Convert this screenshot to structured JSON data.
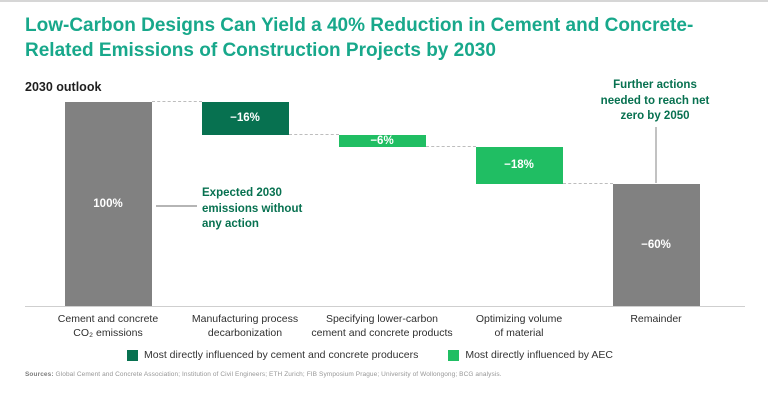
{
  "title": "Low-Carbon Designs Can Yield a 40% Reduction in Cement and Concrete-Related Emissions of Construction Projects by 2030",
  "subtitle": "2030 outlook",
  "annotations": {
    "expected": "Expected 2030\nemissions without\nany action",
    "further": "Further actions\nneeded to reach net\nzero by 2050"
  },
  "legend": [
    {
      "label": "Most directly influenced by cement and concrete producers",
      "color": "#077150"
    },
    {
      "label": "Most directly influenced by AEC",
      "color": "#20be63"
    }
  ],
  "sources_label": "Sources:",
  "sources_text": " Global Cement and Concrete Association; Institution of Civil Engineers; ETH Zurich; FIB Symposium Prague; University of Wollongong; BCG analysis.",
  "colors": {
    "title_teal": "#18a88b",
    "producer_dark_green": "#077150",
    "aec_light_green": "#20be63",
    "neutral_gray": "#818181",
    "annotation_green": "#077150"
  },
  "chart_data": {
    "type": "bar",
    "subtype": "waterfall",
    "title": "2030 outlook",
    "unit": "%",
    "ylim": [
      0,
      100
    ],
    "grid": false,
    "legend_position": "bottom",
    "categories": [
      "Cement and concrete CO₂ emissions",
      "Manufacturing process decarbonization",
      "Specifying lower-carbon cement and concrete products",
      "Optimizing volume of material",
      "Remainder"
    ],
    "values": [
      100,
      -16,
      -6,
      -18,
      -60
    ],
    "bars": [
      {
        "category": "Cement and concrete\nCO₂ emissions",
        "label": "100%",
        "value": 100,
        "start": 0,
        "end": 100,
        "group": "baseline",
        "color": "#818181"
      },
      {
        "category": "Manufacturing process\ndecarbonization",
        "label": "−16%",
        "value": -16,
        "start": 84,
        "end": 100,
        "group": "producers",
        "color": "#077150"
      },
      {
        "category": "Specifying lower-carbon\ncement and concrete products",
        "label": "−6%",
        "value": -6,
        "start": 78,
        "end": 84,
        "group": "aec",
        "color": "#20be63"
      },
      {
        "category": "Optimizing volume\nof material",
        "label": "−18%",
        "value": -18,
        "start": 60,
        "end": 78,
        "group": "aec",
        "color": "#20be63"
      },
      {
        "category": "Remainder",
        "label": "−60%",
        "value": -60,
        "start": 0,
        "end": 60,
        "group": "remainder",
        "color": "#818181"
      }
    ]
  }
}
